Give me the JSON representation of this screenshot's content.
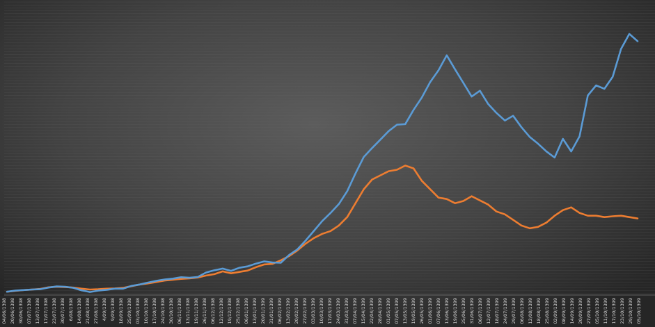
{
  "chart_data": {
    "type": "line",
    "title": "",
    "xlabel": "",
    "ylabel": "",
    "grid": true,
    "legend": "none",
    "ylim": [
      0,
      100
    ],
    "x_tick_labels": [
      "04/06/1398",
      "20/06/1398",
      "30/06/1398",
      "07/07/1398",
      "13/07/1398",
      "17/07/1398",
      "23/07/1398",
      "30/07/1398",
      "6/08/1398",
      "14/08/1398",
      "21/08/1398",
      "27/08/1398",
      "4/09/1398",
      "9/09/1398",
      "18/09/1398",
      "25/09/1398",
      "03/10/1398",
      "10/10/1398",
      "17/10/1398",
      "24/10/1398",
      "30/10/1398",
      "06/11/1398",
      "13/11/1398",
      "19/11/1398",
      "26/11/1398",
      "06/12/1398",
      "12/12/1398",
      "19/12/1398",
      "25/12/1398",
      "06/01/1399",
      "13/01/1399",
      "20/01/1399",
      "31/01/1399",
      "06/02/1399",
      "13/02/1399",
      "20/02/1399",
      "27/02/1399",
      "03/03/1399",
      "10/03/1399",
      "17/03/1399",
      "24/03/1399",
      "31/03/1399",
      "07/04/1399",
      "15/04/1399",
      "22/04/1399",
      "28/04/1399",
      "01/05/1399",
      "07/05/1399",
      "13/05/1399",
      "19/05/1399",
      "26/05/1399",
      "01/06/1399",
      "07/06/1399",
      "13/06/1399",
      "19/06/1399",
      "25/06/1399",
      "31/06/1399",
      "06/07/1399",
      "12/07/1399",
      "18/07/1399",
      "24/07/1399",
      "29/07/1399",
      "06/08/1399",
      "12/08/1399",
      "18/08/1399",
      "25/08/1399",
      "02/09/1399",
      "08/09/1399",
      "14/09/1399",
      "20/09/1399",
      "27/09/1399",
      "05/10/1399",
      "11/10/1399",
      "17/10/1399",
      "23/10/1399",
      "29/10/1399",
      "05/10/1399"
    ],
    "series": [
      {
        "color": "#5b9bd5",
        "values": [
          1.2,
          1.6,
          1.8,
          2.0,
          2.1,
          2.7,
          3.1,
          3.0,
          2.6,
          1.7,
          1.1,
          1.6,
          1.9,
          2.3,
          2.3,
          3.3,
          3.8,
          4.5,
          5.1,
          5.6,
          5.9,
          6.4,
          6.2,
          6.5,
          8.1,
          8.9,
          9.5,
          8.7,
          9.8,
          10.3,
          11.3,
          12.1,
          11.7,
          11.6,
          14.4,
          16.4,
          19.6,
          23.1,
          26.6,
          29.5,
          32.7,
          37.3,
          43.7,
          49.6,
          52.8,
          55.8,
          58.9,
          61.2,
          61.4,
          66.5,
          71.0,
          76.5,
          80.7,
          86.1,
          81.1,
          76.2,
          71.3,
          73.4,
          68.6,
          65.4,
          62.7,
          64.4,
          60.3,
          56.8,
          54.4,
          51.6,
          49.4,
          56.1,
          51.6,
          57.0,
          71.7,
          75.3,
          74.1,
          78.4,
          88.4,
          93.8,
          91.2
        ]
      },
      {
        "color": "#ed7d31",
        "values": [
          1.2,
          1.5,
          1.8,
          2.0,
          2.2,
          2.8,
          3.0,
          2.9,
          2.7,
          2.3,
          2.0,
          2.1,
          2.3,
          2.4,
          2.6,
          3.2,
          3.8,
          4.2,
          4.7,
          5.2,
          5.5,
          5.8,
          6.0,
          6.3,
          7.0,
          7.5,
          8.5,
          7.8,
          8.3,
          8.8,
          10.0,
          11.0,
          11.2,
          12.5,
          14.0,
          16.0,
          18.5,
          20.5,
          22.0,
          23.0,
          25.0,
          28.0,
          33.0,
          38.0,
          41.5,
          43.0,
          44.5,
          45.0,
          46.5,
          45.5,
          41.0,
          38.0,
          35.0,
          34.5,
          33.0,
          33.8,
          35.5,
          34.0,
          32.5,
          30.0,
          29.0,
          27.0,
          25.0,
          24.0,
          24.5,
          26.0,
          28.5,
          30.5,
          31.5,
          29.5,
          28.5,
          28.5,
          28.0,
          28.3,
          28.5,
          28.0,
          27.5
        ]
      }
    ]
  }
}
